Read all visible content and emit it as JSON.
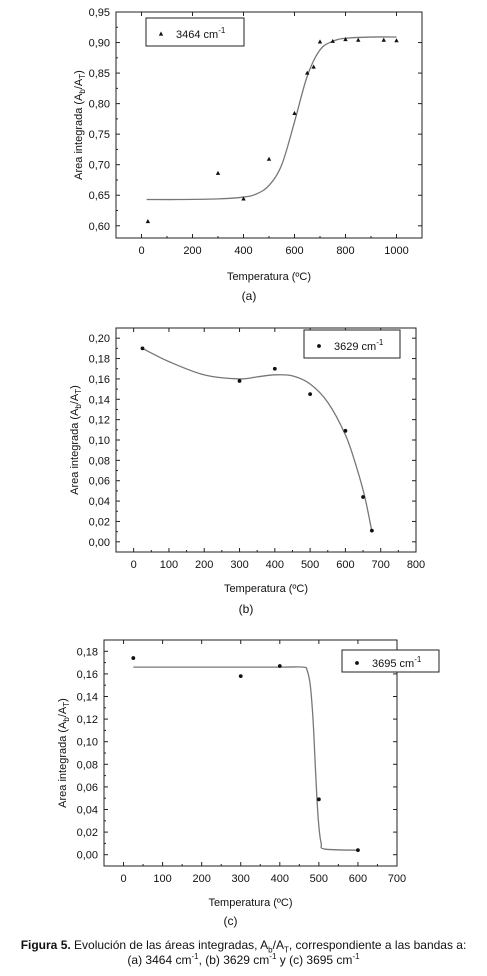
{
  "chart_data": [
    {
      "type": "scatter",
      "panel_label": "(a)",
      "xlabel": "Temperatura (ºC)",
      "ylabel_main": "Area integrada (A",
      "ylabel_sub_b": "b",
      "ylabel_mid": "/A",
      "ylabel_sub_t": "T",
      "ylabel_end": ")",
      "xlim": [
        -100,
        1100
      ],
      "ylim": [
        0.58,
        0.95
      ],
      "xticks": [
        0,
        200,
        400,
        600,
        800,
        1000
      ],
      "xtick_labels": [
        "0",
        "200",
        "400",
        "600",
        "800",
        "1000"
      ],
      "yticks": [
        0.6,
        0.65,
        0.7,
        0.75,
        0.8,
        0.85,
        0.9,
        0.95
      ],
      "ytick_labels": [
        "0,60",
        "0,65",
        "0,70",
        "0,75",
        "0,80",
        "0,85",
        "0,90",
        "0,95"
      ],
      "legend": {
        "label": "3464 cm",
        "superscript": "-1",
        "marker": "triangle",
        "position": "top-left"
      },
      "marker": "triangle",
      "points": [
        {
          "x": 25,
          "y": 0.607
        },
        {
          "x": 300,
          "y": 0.686
        },
        {
          "x": 400,
          "y": 0.644
        },
        {
          "x": 500,
          "y": 0.709
        },
        {
          "x": 600,
          "y": 0.784
        },
        {
          "x": 650,
          "y": 0.85
        },
        {
          "x": 675,
          "y": 0.86
        },
        {
          "x": 700,
          "y": 0.901
        },
        {
          "x": 750,
          "y": 0.902
        },
        {
          "x": 800,
          "y": 0.905
        },
        {
          "x": 850,
          "y": 0.904
        },
        {
          "x": 950,
          "y": 0.904
        },
        {
          "x": 1000,
          "y": 0.903
        }
      ],
      "fit_curve": [
        {
          "x": 20,
          "y": 0.643
        },
        {
          "x": 150,
          "y": 0.643
        },
        {
          "x": 300,
          "y": 0.644
        },
        {
          "x": 400,
          "y": 0.647
        },
        {
          "x": 450,
          "y": 0.652
        },
        {
          "x": 500,
          "y": 0.666
        },
        {
          "x": 550,
          "y": 0.7
        },
        {
          "x": 600,
          "y": 0.77
        },
        {
          "x": 650,
          "y": 0.845
        },
        {
          "x": 700,
          "y": 0.888
        },
        {
          "x": 750,
          "y": 0.902
        },
        {
          "x": 800,
          "y": 0.907
        },
        {
          "x": 900,
          "y": 0.909
        },
        {
          "x": 1000,
          "y": 0.909
        }
      ]
    },
    {
      "type": "scatter",
      "panel_label": "(b)",
      "xlabel": "Temperatura (ºC)",
      "ylabel_main": "Area integrada (A",
      "ylabel_sub_b": "b",
      "ylabel_mid": "/A",
      "ylabel_sub_t": "T",
      "ylabel_end": ")",
      "xlim": [
        -50,
        800
      ],
      "ylim": [
        -0.01,
        0.21
      ],
      "xticks": [
        0,
        100,
        200,
        300,
        400,
        500,
        600,
        700,
        800
      ],
      "xtick_labels": [
        "0",
        "100",
        "200",
        "300",
        "400",
        "500",
        "600",
        "700",
        "800"
      ],
      "yticks": [
        0.0,
        0.02,
        0.04,
        0.06,
        0.08,
        0.1,
        0.12,
        0.14,
        0.16,
        0.18,
        0.2
      ],
      "ytick_labels": [
        "0,00",
        "0,02",
        "0,04",
        "0,06",
        "0,08",
        "0,10",
        "0,12",
        "0,14",
        "0,16",
        "0,18",
        "0,20"
      ],
      "legend": {
        "label": "3629 cm",
        "superscript": "-1",
        "marker": "dot",
        "position": "top-right"
      },
      "marker": "dot",
      "points": [
        {
          "x": 25,
          "y": 0.19
        },
        {
          "x": 300,
          "y": 0.158
        },
        {
          "x": 400,
          "y": 0.17
        },
        {
          "x": 500,
          "y": 0.145
        },
        {
          "x": 600,
          "y": 0.109
        },
        {
          "x": 650,
          "y": 0.044
        },
        {
          "x": 675,
          "y": 0.011
        }
      ],
      "fit_curve": [
        {
          "x": 25,
          "y": 0.19
        },
        {
          "x": 100,
          "y": 0.177
        },
        {
          "x": 200,
          "y": 0.164
        },
        {
          "x": 300,
          "y": 0.16
        },
        {
          "x": 350,
          "y": 0.162
        },
        {
          "x": 400,
          "y": 0.164
        },
        {
          "x": 450,
          "y": 0.163
        },
        {
          "x": 500,
          "y": 0.155
        },
        {
          "x": 550,
          "y": 0.137
        },
        {
          "x": 600,
          "y": 0.105
        },
        {
          "x": 630,
          "y": 0.075
        },
        {
          "x": 655,
          "y": 0.044
        },
        {
          "x": 675,
          "y": 0.01
        }
      ]
    },
    {
      "type": "scatter",
      "panel_label": "(c)",
      "xlabel": "Temperatura (ºC)",
      "ylabel_main": "Area integrada (A",
      "ylabel_sub_b": "b",
      "ylabel_mid": "/A",
      "ylabel_sub_t": "T",
      "ylabel_end": ")",
      "xlim": [
        -50,
        700
      ],
      "ylim": [
        -0.01,
        0.19
      ],
      "xticks": [
        0,
        100,
        200,
        300,
        400,
        500,
        600,
        700
      ],
      "xtick_labels": [
        "0",
        "100",
        "200",
        "300",
        "400",
        "500",
        "600",
        "700"
      ],
      "yticks": [
        0.0,
        0.02,
        0.04,
        0.06,
        0.08,
        0.1,
        0.12,
        0.14,
        0.16,
        0.18
      ],
      "ytick_labels": [
        "0,00",
        "0,02",
        "0,04",
        "0,06",
        "0,08",
        "0,10",
        "0,12",
        "0,14",
        "0,16",
        "0,18"
      ],
      "legend": {
        "label": "3695 cm",
        "superscript": "-1",
        "marker": "dot",
        "position": "top-right"
      },
      "marker": "dot",
      "points": [
        {
          "x": 25,
          "y": 0.174
        },
        {
          "x": 300,
          "y": 0.158
        },
        {
          "x": 400,
          "y": 0.167
        },
        {
          "x": 500,
          "y": 0.049
        },
        {
          "x": 600,
          "y": 0.004
        }
      ],
      "fit_curve": [
        {
          "x": 25,
          "y": 0.166
        },
        {
          "x": 200,
          "y": 0.166
        },
        {
          "x": 400,
          "y": 0.166
        },
        {
          "x": 460,
          "y": 0.166
        },
        {
          "x": 470,
          "y": 0.163
        },
        {
          "x": 478,
          "y": 0.15
        },
        {
          "x": 485,
          "y": 0.12
        },
        {
          "x": 490,
          "y": 0.085
        },
        {
          "x": 495,
          "y": 0.05
        },
        {
          "x": 500,
          "y": 0.025
        },
        {
          "x": 506,
          "y": 0.01
        },
        {
          "x": 515,
          "y": 0.005
        },
        {
          "x": 600,
          "y": 0.004
        }
      ]
    }
  ],
  "caption": {
    "figure_label": "Figura 5.",
    "text_1": " Evolución de las áreas integradas, A",
    "sub_b": "b",
    "text_2": "/A",
    "sub_t": "T",
    "text_3": ", correspondiente a las bandas a:",
    "text_4": "(a) 3464 cm",
    "sup_1": "-1",
    "text_5": ", (b) 3629 cm",
    "sup_2": "-1",
    "text_6": " y (c) 3695 cm",
    "sup_3": "-1"
  }
}
